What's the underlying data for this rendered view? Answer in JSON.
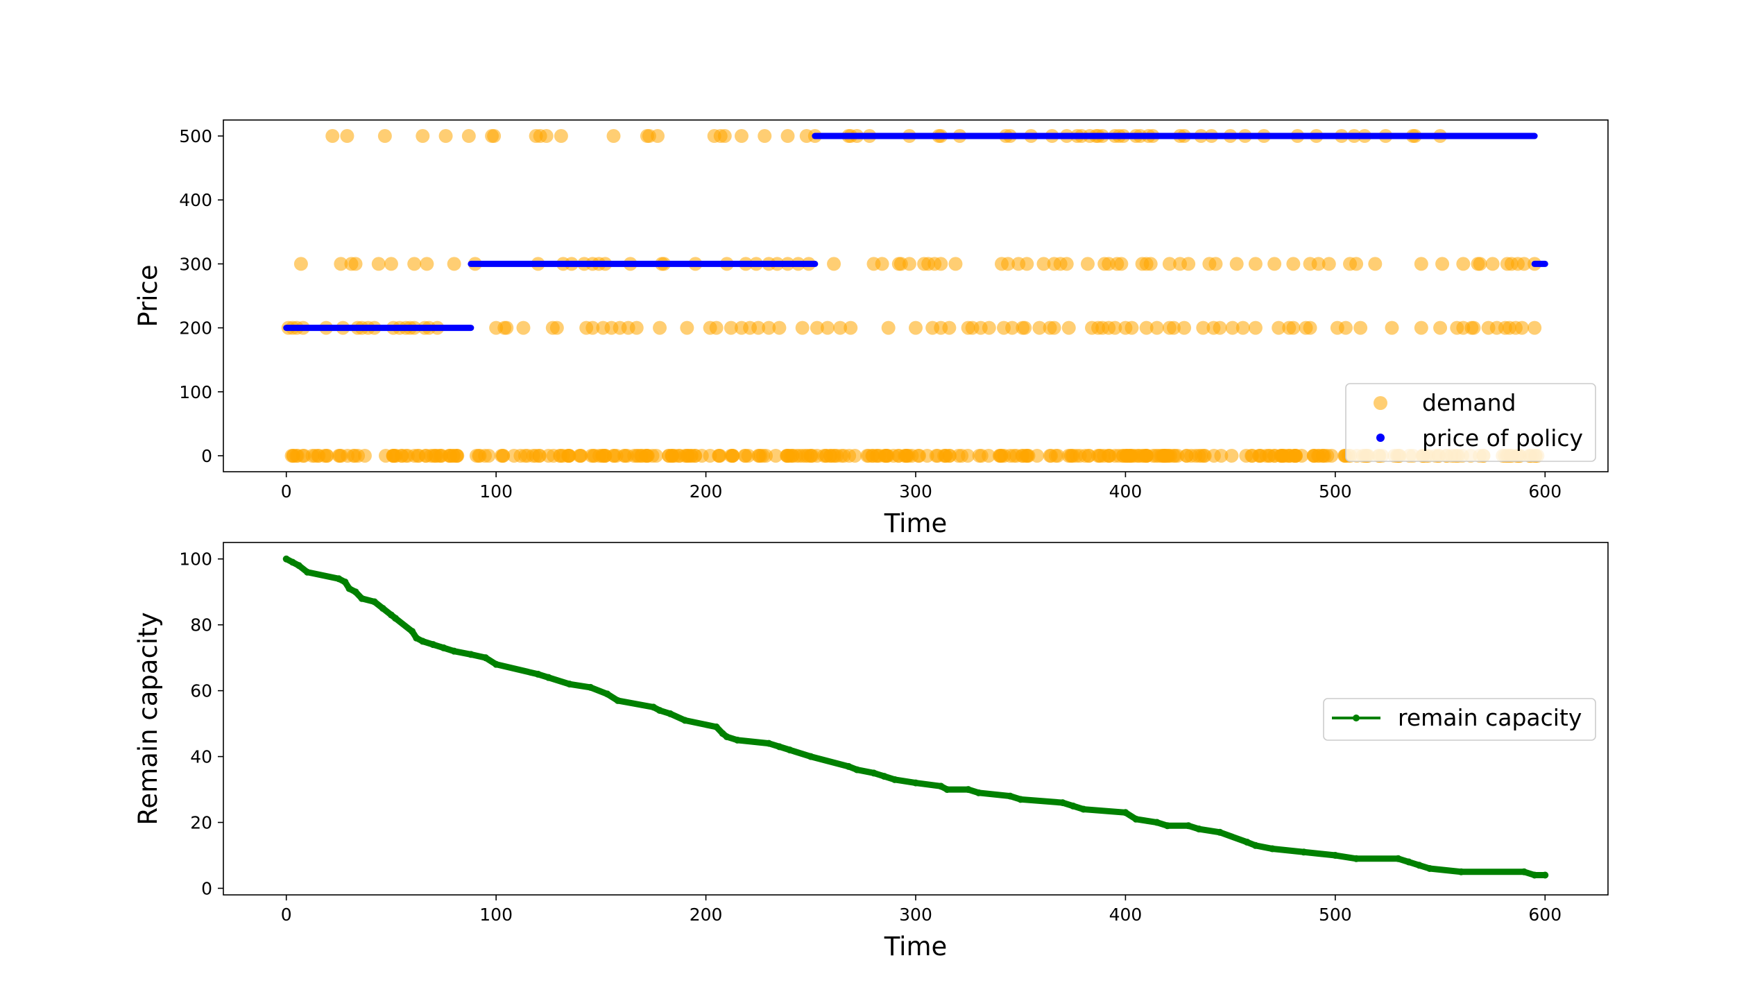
{
  "chart_data": [
    {
      "type": "scatter",
      "xlabel": "Time",
      "ylabel": "Price",
      "xlim": [
        -30,
        630
      ],
      "ylim": [
        -25,
        525
      ],
      "xticks": [
        0,
        100,
        200,
        300,
        400,
        500,
        600
      ],
      "yticks": [
        0,
        100,
        200,
        300,
        400,
        500
      ],
      "legend": {
        "placement": "lower-right",
        "entries": [
          "demand",
          "price of policy"
        ]
      },
      "colors": {
        "demand": "#FFA500",
        "price of policy": "#0000FF"
      },
      "series": [
        {
          "name": "demand",
          "marker": "circle",
          "alpha": 0.55,
          "levels": [
            {
              "y": 500,
              "x": [
                22,
                29,
                47,
                65,
                76,
                87,
                98,
                99,
                119,
                121,
                124,
                131,
                156,
                172,
                173,
                177,
                204,
                207,
                209,
                217,
                228,
                239,
                248,
                252,
                268,
                269,
                272,
                278,
                297,
                311,
                312,
                321,
                343,
                345,
                355,
                365,
                372,
                377,
                379,
                383,
                386,
                387,
                389,
                395,
                397,
                399,
                405,
                407,
                411,
                413,
                426,
                428,
                436,
                441,
                450,
                457,
                466,
                482,
                491,
                503,
                509,
                514,
                524,
                537,
                538,
                550
              ]
            },
            {
              "y": 300,
              "x": [
                7,
                26,
                31,
                33,
                44,
                50,
                61,
                67,
                80,
                90,
                120,
                132,
                136,
                142,
                146,
                149,
                152,
                164,
                179,
                180,
                195,
                210,
                219,
                224,
                230,
                234,
                239,
                244,
                249,
                261,
                280,
                284,
                292,
                293,
                297,
                304,
                306,
                309,
                312,
                319,
                341,
                344,
                349,
                353,
                361,
                366,
                369,
                372,
                382,
                390,
                392,
                396,
                398,
                408,
                410,
                412,
                421,
                426,
                430,
                440,
                443,
                453,
                462,
                471,
                480,
                488,
                492,
                497,
                507,
                510,
                519,
                541,
                551,
                561,
                568,
                569,
                575,
                582,
                584,
                587,
                590,
                595
              ]
            },
            {
              "y": 200,
              "x": [
                1,
                3,
                5,
                8,
                19,
                27,
                34,
                36,
                39,
                42,
                51,
                54,
                57,
                59,
                61,
                66,
                68,
                72,
                100,
                104,
                105,
                113,
                127,
                129,
                143,
                146,
                151,
                155,
                159,
                163,
                167,
                178,
                191,
                202,
                205,
                212,
                217,
                221,
                225,
                230,
                235,
                246,
                253,
                258,
                264,
                269,
                287,
                300,
                308,
                312,
                316,
                325,
                327,
                331,
                335,
                342,
                346,
                351,
                352,
                359,
                364,
                366,
                373,
                384,
                387,
                389,
                392,
                395,
                400,
                403,
                410,
                415,
                421,
                423,
                428,
                437,
                442,
                445,
                451,
                456,
                462,
                473,
                478,
                480,
                486,
                488,
                501,
                505,
                512,
                527,
                541,
                550,
                558,
                561,
                565,
                566,
                573,
                577,
                581,
                583,
                586,
                589,
                595
              ]
            },
            {
              "y": 0,
              "x_range": [
                0,
                598
              ],
              "dense": true,
              "count": 380
            }
          ]
        },
        {
          "name": "price of policy",
          "marker": "point",
          "segments": [
            {
              "y": 200,
              "x_range": [
                0,
                88
              ]
            },
            {
              "y": 300,
              "x_range": [
                88,
                252
              ]
            },
            {
              "y": 500,
              "x_range": [
                252,
                595
              ]
            },
            {
              "y": 300,
              "x_range": [
                595,
                600
              ]
            }
          ]
        }
      ]
    },
    {
      "type": "line",
      "xlabel": "Time",
      "ylabel": "Remain capacity",
      "xlim": [
        -30,
        630
      ],
      "ylim": [
        -2,
        105
      ],
      "xticks": [
        0,
        100,
        200,
        300,
        400,
        500,
        600
      ],
      "yticks": [
        0,
        20,
        40,
        60,
        80,
        100
      ],
      "legend": {
        "placement": "center-right",
        "entries": [
          "remain capacity"
        ]
      },
      "colors": {
        "remain capacity": "#008000"
      },
      "series": [
        {
          "name": "remain capacity",
          "marker": "point",
          "x": [
            0,
            3,
            6,
            10,
            25,
            28,
            30,
            33,
            36,
            42,
            46,
            50,
            52,
            60,
            62,
            65,
            70,
            75,
            80,
            88,
            95,
            100,
            120,
            125,
            135,
            145,
            153,
            158,
            175,
            178,
            183,
            190,
            205,
            208,
            210,
            215,
            230,
            235,
            240,
            250,
            268,
            272,
            280,
            285,
            290,
            300,
            312,
            315,
            325,
            330,
            345,
            350,
            370,
            375,
            380,
            400,
            405,
            415,
            420,
            430,
            435,
            445,
            458,
            462,
            470,
            485,
            500,
            510,
            530,
            535,
            540,
            545,
            560,
            590,
            595,
            600
          ],
          "y": [
            100,
            99,
            98,
            96,
            94,
            93,
            91,
            90,
            88,
            87,
            85,
            83,
            82,
            78,
            76,
            75,
            74,
            73,
            72,
            71,
            70,
            68,
            65,
            64,
            62,
            61,
            59,
            57,
            55,
            54,
            53,
            51,
            49,
            47,
            46,
            45,
            44,
            43,
            42,
            40,
            37,
            36,
            35,
            34,
            33,
            32,
            31,
            30,
            30,
            29,
            28,
            27,
            26,
            25,
            24,
            23,
            21,
            20,
            19,
            19,
            18,
            17,
            14,
            13,
            12,
            11,
            10,
            9,
            9,
            8,
            7,
            6,
            5,
            5,
            4,
            4
          ]
        }
      ]
    }
  ]
}
